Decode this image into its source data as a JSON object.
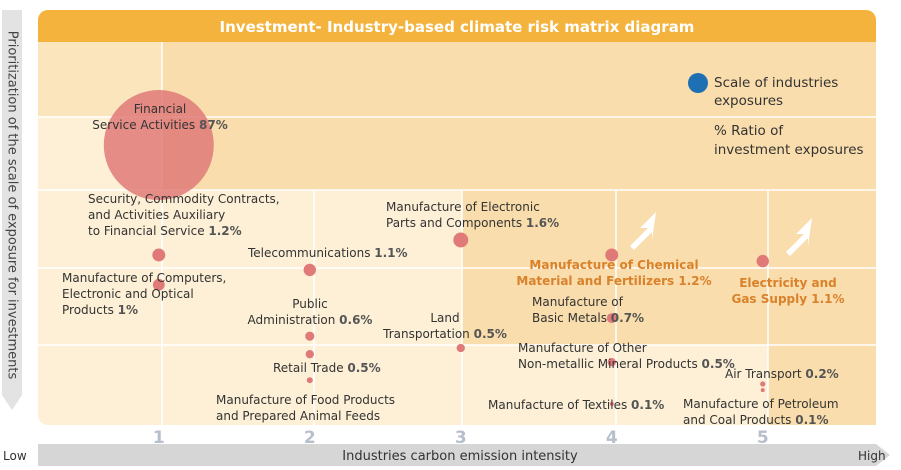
{
  "chart_data": {
    "type": "bubble",
    "title": "Investment- Industry-based climate risk matrix diagram",
    "x_label": "Industries carbon emission intensity",
    "y_label": "Prioritization of the scale of exposure for investments",
    "x_low": "Low",
    "x_high": "High",
    "xlim": [
      0.2,
      5.75
    ],
    "xticks": [
      1,
      2,
      3,
      4,
      5
    ],
    "ylim": [
      0,
      10
    ],
    "legend": {
      "size": [
        "Scale of industries",
        "exposures"
      ],
      "ratio": [
        "% Ratio of",
        "investment exposures"
      ],
      "color": "#1f6fb5"
    },
    "color": "#e07a78",
    "highlight_color": "#d9822b",
    "points": [
      {
        "name": [
          "Financial",
          "Service Activities"
        ],
        "x": 1,
        "y": 7.31,
        "size": 87,
        "size_label": "87%"
      },
      {
        "name": [
          "Security, Commodity Contracts,",
          "and Activities Auxiliary",
          "to Financial Service"
        ],
        "x": 1,
        "y": 4.44,
        "size": 1.2,
        "size_label": "1.2%"
      },
      {
        "name": [
          "Manufacture of Computers,",
          "Electronic and Optical",
          "Products"
        ],
        "x": 1,
        "y": 3.66,
        "size": 1,
        "size_label": "1%"
      },
      {
        "name": [
          "Telecommunications"
        ],
        "x": 2,
        "y": 4.05,
        "size": 1.1,
        "size_label": "1.1%"
      },
      {
        "name": [
          "Public",
          "Administration"
        ],
        "x": 2,
        "y": 2.32,
        "size": 0.6,
        "size_label": "0.6%"
      },
      {
        "name": [
          "Retail Trade"
        ],
        "x": 2,
        "y": 1.85,
        "size": 0.5,
        "size_label": "0.5%"
      },
      {
        "name": [
          "Manufacture of Food Products",
          "and Prepared Animal Feeds"
        ],
        "x": 2,
        "y": 1.17,
        "size": null,
        "size_label": null
      },
      {
        "name": [
          "Manufacture of Electronic",
          "Parts and Components"
        ],
        "x": 3,
        "y": 4.83,
        "size": 1.6,
        "size_label": "1.6%"
      },
      {
        "name": [
          "Land",
          "Transportation"
        ],
        "x": 3,
        "y": 2.01,
        "size": 0.5,
        "size_label": "0.5%"
      },
      {
        "name": [
          "Manufacture of Chemical",
          "Material and Fertilizers"
        ],
        "x": 4,
        "y": 4.44,
        "size": 1.2,
        "size_label": "1.2%",
        "highlight": true
      },
      {
        "name": [
          "Manufacture of",
          "Basic Metals"
        ],
        "x": 4,
        "y": 2.79,
        "size": 0.7,
        "size_label": "0.7%"
      },
      {
        "name": [
          "Manufacture of Other",
          "Non-metallic Mineral Products"
        ],
        "x": 4,
        "y": 1.64,
        "size": 0.5,
        "size_label": "0.5%"
      },
      {
        "name": [
          "Manufacture of Textiles"
        ],
        "x": 4,
        "y": 0.55,
        "size": 0.1,
        "size_label": "0.1%"
      },
      {
        "name": [
          "Electricity and",
          "Gas Supply"
        ],
        "x": 5,
        "y": 4.28,
        "size": 1.1,
        "size_label": "1.1%",
        "highlight": true
      },
      {
        "name": [
          "Air Transport"
        ],
        "x": 5,
        "y": 1.07,
        "size": 0.2,
        "size_label": "0.2%"
      },
      {
        "name": [
          "Manufacture of Petroleum",
          "and Coal Products"
        ],
        "x": 5,
        "y": 0.91,
        "size": 0.1,
        "size_label": "0.1%"
      }
    ]
  }
}
